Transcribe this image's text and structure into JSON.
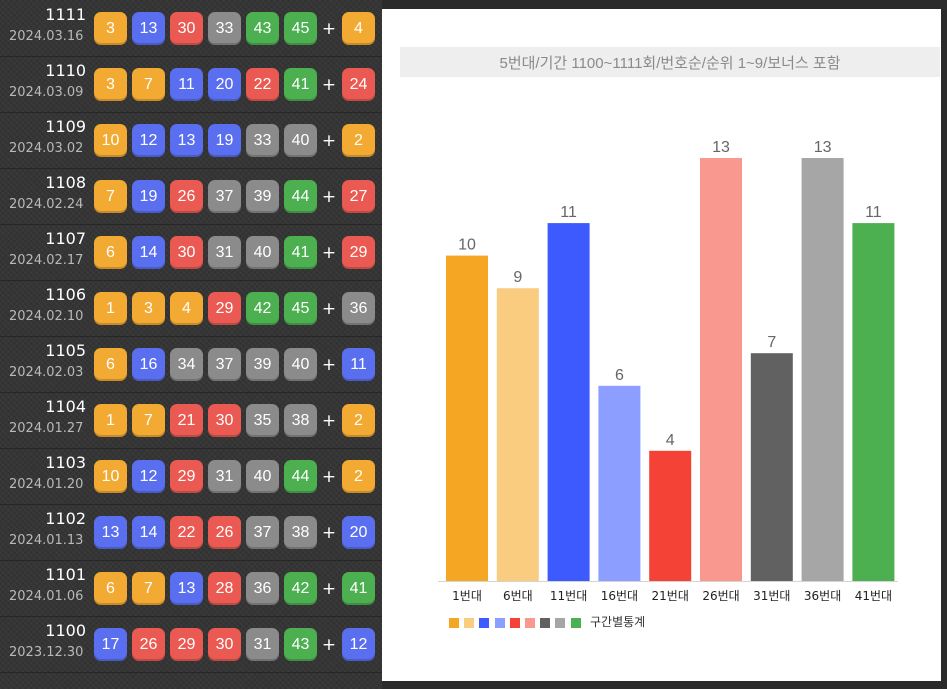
{
  "colors": {
    "yellow": "#f3aa33",
    "blue": "#5a6ff0",
    "red": "#ea5a52",
    "gray": "#8b8b8b",
    "green": "#4caf50"
  },
  "draws": [
    {
      "round": "1111",
      "date": "2024.03.16",
      "numbers": [
        "3",
        "13",
        "30",
        "33",
        "43",
        "45"
      ],
      "bonus": "4"
    },
    {
      "round": "1110",
      "date": "2024.03.09",
      "numbers": [
        "3",
        "7",
        "11",
        "20",
        "22",
        "41"
      ],
      "bonus": "24"
    },
    {
      "round": "1109",
      "date": "2024.03.02",
      "numbers": [
        "10",
        "12",
        "13",
        "19",
        "33",
        "40"
      ],
      "bonus": "2"
    },
    {
      "round": "1108",
      "date": "2024.02.24",
      "numbers": [
        "7",
        "19",
        "26",
        "37",
        "39",
        "44"
      ],
      "bonus": "27"
    },
    {
      "round": "1107",
      "date": "2024.02.17",
      "numbers": [
        "6",
        "14",
        "30",
        "31",
        "40",
        "41"
      ],
      "bonus": "29"
    },
    {
      "round": "1106",
      "date": "2024.02.10",
      "numbers": [
        "1",
        "3",
        "4",
        "29",
        "42",
        "45"
      ],
      "bonus": "36"
    },
    {
      "round": "1105",
      "date": "2024.02.03",
      "numbers": [
        "6",
        "16",
        "34",
        "37",
        "39",
        "40"
      ],
      "bonus": "11"
    },
    {
      "round": "1104",
      "date": "2024.01.27",
      "numbers": [
        "1",
        "7",
        "21",
        "30",
        "35",
        "38"
      ],
      "bonus": "2"
    },
    {
      "round": "1103",
      "date": "2024.01.20",
      "numbers": [
        "10",
        "12",
        "29",
        "31",
        "40",
        "44"
      ],
      "bonus": "2"
    },
    {
      "round": "1102",
      "date": "2024.01.13",
      "numbers": [
        "13",
        "14",
        "22",
        "26",
        "37",
        "38"
      ],
      "bonus": "20"
    },
    {
      "round": "1101",
      "date": "2024.01.06",
      "numbers": [
        "6",
        "7",
        "13",
        "28",
        "36",
        "42"
      ],
      "bonus": "41"
    },
    {
      "round": "1100",
      "date": "2023.12.30",
      "numbers": [
        "17",
        "26",
        "29",
        "30",
        "31",
        "43"
      ],
      "bonus": "12"
    }
  ],
  "plus_label": "+",
  "chart_data": {
    "type": "bar",
    "title": "5번대/기간 1100~1111회/번호순/순위 1~9/보너스 포함",
    "categories": [
      "1번대",
      "6번대",
      "11번대",
      "16번대",
      "21번대",
      "26번대",
      "31번대",
      "36번대",
      "41번대"
    ],
    "values": [
      10,
      9,
      11,
      6,
      4,
      13,
      7,
      13,
      11
    ],
    "colors": [
      "#f5a623",
      "#f9cc80",
      "#3d5afe",
      "#8c9eff",
      "#f44336",
      "#f8988f",
      "#616161",
      "#a6a6a6",
      "#4caf50"
    ],
    "legend": "구간별통계",
    "ylim": [
      0,
      13
    ],
    "xlabel": "",
    "ylabel": ""
  }
}
